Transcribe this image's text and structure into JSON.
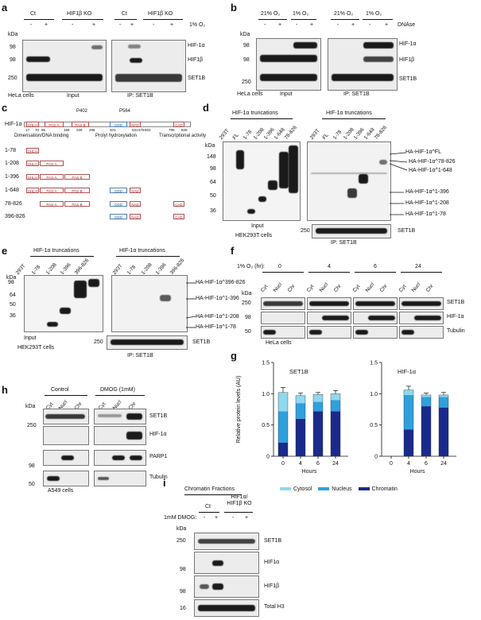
{
  "panels": [
    "a",
    "b",
    "c",
    "d",
    "e",
    "f",
    "g",
    "h",
    "i"
  ],
  "a": {
    "col_groups": [
      "Ct",
      "HIF1β KO",
      "Ct",
      "HIF1β KO"
    ],
    "treatment_label": "1% O₂",
    "lane_signs": [
      "-",
      "+",
      "-",
      "+",
      "-",
      "+",
      "-",
      "+"
    ],
    "kda_label": "kDa",
    "markers": [
      "98",
      "98",
      "250"
    ],
    "row_labels": [
      "HIF-1α",
      "HIF1β",
      "SET1B"
    ],
    "cell_label": "HeLa cells",
    "input_label": "Input",
    "ip_label": "IP: SET1B"
  },
  "b": {
    "col_groups": [
      "21% O₂",
      "1% O₂",
      "21% O₂",
      "1% O₂"
    ],
    "treatment_label": "DNAse",
    "lane_signs": [
      "-",
      "+",
      "-",
      "+",
      "-",
      "+",
      "-",
      "+"
    ],
    "kda_label": "kDa",
    "markers": [
      "98",
      "98",
      "250"
    ],
    "row_labels": [
      "HIF-1α",
      "HIF1β",
      "SET1B"
    ],
    "cell_label": "HeLa cells",
    "input_label": "Input",
    "ip_label": "IP: SET1B"
  },
  "c": {
    "protein": "HIF-1α",
    "top_labels": [
      "P402",
      "P564"
    ],
    "domains": [
      "bHLH",
      "PAS-A",
      "PAS-B",
      "ODD",
      "NAD",
      "CAD"
    ],
    "positions": [
      "17",
      "70",
      "85",
      "158",
      "228",
      "298",
      "401",
      "531",
      "575",
      "603",
      "786",
      "826"
    ],
    "feature_labels": [
      "Dimerisation/DNA binding",
      "Prolyl hydroxylation",
      "Transcriptional activity"
    ],
    "constructs": [
      "1-78",
      "1-208",
      "1-396",
      "1-648",
      "78-826",
      "396-826"
    ]
  },
  "d": {
    "header_input": "HIF-1α truncations",
    "header_ip": "HIF-1α truncations",
    "lanes": [
      "293T",
      "FL",
      "1-78",
      "1-208",
      "1-396",
      "1-648",
      "78-826"
    ],
    "kda_label": "kDa",
    "markers": [
      "148",
      "98",
      "64",
      "50",
      "36"
    ],
    "band_labels": [
      "HA-HIF-1α^FL",
      "HA-HIF-1α^78-826",
      "HA-HIF-1α^1-648",
      "HA-HIF-1α^1-396",
      "HA-HIF-1α^1-208",
      "HA-HIF-1α^1-78"
    ],
    "input_label": "Input",
    "cell_label": "HEK293T cells",
    "ip_label": "IP: SET1B",
    "set1b_marker": "250",
    "set1b_label": "SET1B"
  },
  "e": {
    "header_input": "HIF-1α truncations",
    "header_ip": "HIF-1α truncations",
    "lanes": [
      "293T",
      "1-78",
      "1-208",
      "1-396",
      "396-826"
    ],
    "kda_label": "kDa",
    "markers": [
      "98",
      "64",
      "50",
      "36"
    ],
    "band_labels": [
      "HA-HIF-1α^396-826",
      "HA-HIF-1α^1-396",
      "HA-HIF-1α^1-208",
      "HA-HIF-1α^1-78"
    ],
    "input_label": "Input",
    "cell_label": "HEK293T cells",
    "ip_label": "IP: SET1B",
    "set1b_marker": "250",
    "set1b_label": "SET1B"
  },
  "f": {
    "time_label": "1% O₂ (hr):",
    "times": [
      "0",
      "4",
      "6",
      "24"
    ],
    "fractions": [
      "Cyt",
      "Nucl",
      "Chr"
    ],
    "kda_label": "kDa",
    "markers": [
      "250",
      "98",
      "50"
    ],
    "row_labels": [
      "SET1B",
      "HIF-1α",
      "Tubulin"
    ],
    "cell_label": "HeLa cells"
  },
  "g": {
    "ylabel": "Relative protein levels (AU)",
    "xlabel": "Hours",
    "legend": [
      "Cytosol",
      "Nucleus",
      "Chromatin"
    ]
  },
  "chart_data": [
    {
      "type": "bar",
      "stacked": true,
      "title": "SET1B",
      "categories": [
        "0",
        "4",
        "6",
        "24"
      ],
      "series": [
        {
          "name": "Chromatin",
          "values": [
            0.22,
            0.6,
            0.72,
            0.72
          ]
        },
        {
          "name": "Nucleus",
          "values": [
            0.5,
            0.25,
            0.15,
            0.18
          ]
        },
        {
          "name": "Cytosol",
          "values": [
            0.3,
            0.12,
            0.12,
            0.1
          ]
        }
      ],
      "errors": [
        0.08,
        0.04,
        0.03,
        0.05
      ],
      "xlabel": "Hours",
      "ylabel": "Relative protein levels (AU)",
      "ylim": [
        0,
        1.5
      ],
      "yticks": [
        "0",
        "0.5",
        "1.0",
        "1.5"
      ],
      "colors": {
        "Cytosol": "#8fd8ee",
        "Nucleus": "#2fa0dc",
        "Chromatin": "#1a2a8c"
      }
    },
    {
      "type": "bar",
      "stacked": true,
      "title": "HIF-1α",
      "categories": [
        "0",
        "4",
        "6",
        "24"
      ],
      "series": [
        {
          "name": "Chromatin",
          "values": [
            0,
            0.43,
            0.8,
            0.78
          ]
        },
        {
          "name": "Nucleus",
          "values": [
            0,
            0.55,
            0.15,
            0.17
          ]
        },
        {
          "name": "Cytosol",
          "values": [
            0,
            0.08,
            0.03,
            0.03
          ]
        }
      ],
      "errors": [
        0,
        0.06,
        0.03,
        0.04
      ],
      "xlabel": "Hours",
      "ylim": [
        0,
        1.5
      ],
      "yticks": [
        "0",
        "0.5",
        "1.0",
        "1.5"
      ],
      "colors": {
        "Cytosol": "#8fd8ee",
        "Nucleus": "#2fa0dc",
        "Chromatin": "#1a2a8c"
      }
    }
  ],
  "h": {
    "group_labels": [
      "Control",
      "DMOG (1mM)"
    ],
    "fractions": [
      "Cyt",
      "Nucl",
      "Chr",
      "Cyt",
      "Nucl",
      "Chr"
    ],
    "kda_label": "kDa",
    "markers": [
      "250",
      "98",
      "50"
    ],
    "row_labels": [
      "SET1B",
      "HIF-1α",
      "PARP1",
      "Tubulin"
    ],
    "cell_label": "A549 cells"
  },
  "i": {
    "title": "Chromatin Fractions",
    "groups": [
      "Ct",
      "HIF1α/ HIF1β KO"
    ],
    "treatment_label": "1mM DMOG:",
    "lane_signs": [
      "-",
      "+",
      "-",
      "+"
    ],
    "kda_label": "kDa",
    "markers": [
      "250",
      "98",
      "98",
      "16"
    ],
    "row_labels": [
      "SET1B",
      "HIF1α",
      "HIF1β",
      "Total H3"
    ]
  }
}
